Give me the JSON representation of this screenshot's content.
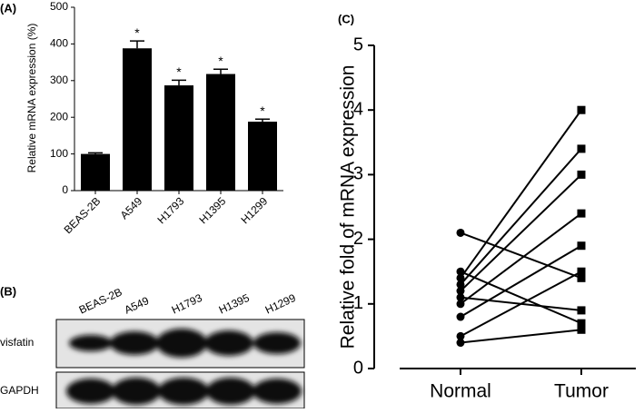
{
  "chart_data": [
    {
      "type": "bar",
      "panel": "(A)",
      "ylabel": "Relative mRNA expression (%)",
      "categories": [
        "BEAS-2B",
        "A549",
        "H1793",
        "H1395",
        "H1299"
      ],
      "values": [
        100,
        388,
        287,
        318,
        188
      ],
      "errors": [
        3,
        20,
        14,
        13,
        7
      ],
      "significance": [
        null,
        "*",
        "*",
        "*",
        "*"
      ],
      "color": "#000000",
      "ylim": [
        0,
        500
      ],
      "yticks": [
        0,
        100,
        200,
        300,
        400,
        500
      ]
    },
    {
      "type": "line",
      "panel": "(C)",
      "ylabel": "Relative fold of mRNA expression",
      "categories": [
        "Normal",
        "Tumor"
      ],
      "markers": [
        "circle",
        "square"
      ],
      "color": "#000000",
      "series": [
        {
          "values": [
            2.1,
            1.4
          ]
        },
        {
          "values": [
            1.5,
            0.7
          ]
        },
        {
          "values": [
            1.4,
            4.0
          ]
        },
        {
          "values": [
            1.3,
            3.4
          ]
        },
        {
          "values": [
            1.2,
            3.0
          ]
        },
        {
          "values": [
            1.1,
            0.9
          ]
        },
        {
          "values": [
            1.0,
            2.4
          ]
        },
        {
          "values": [
            0.8,
            1.9
          ]
        },
        {
          "values": [
            0.5,
            1.5
          ]
        },
        {
          "values": [
            0.4,
            0.6
          ]
        }
      ],
      "ylim": [
        0,
        5
      ],
      "yticks": [
        0,
        1,
        2,
        3,
        4,
        5
      ]
    }
  ],
  "blot": {
    "panel": "(B)",
    "lanes": [
      "BEAS-2B",
      "A549",
      "H1793",
      "H1395",
      "H1299"
    ],
    "rows": [
      "visfatin",
      "GAPDH"
    ]
  }
}
